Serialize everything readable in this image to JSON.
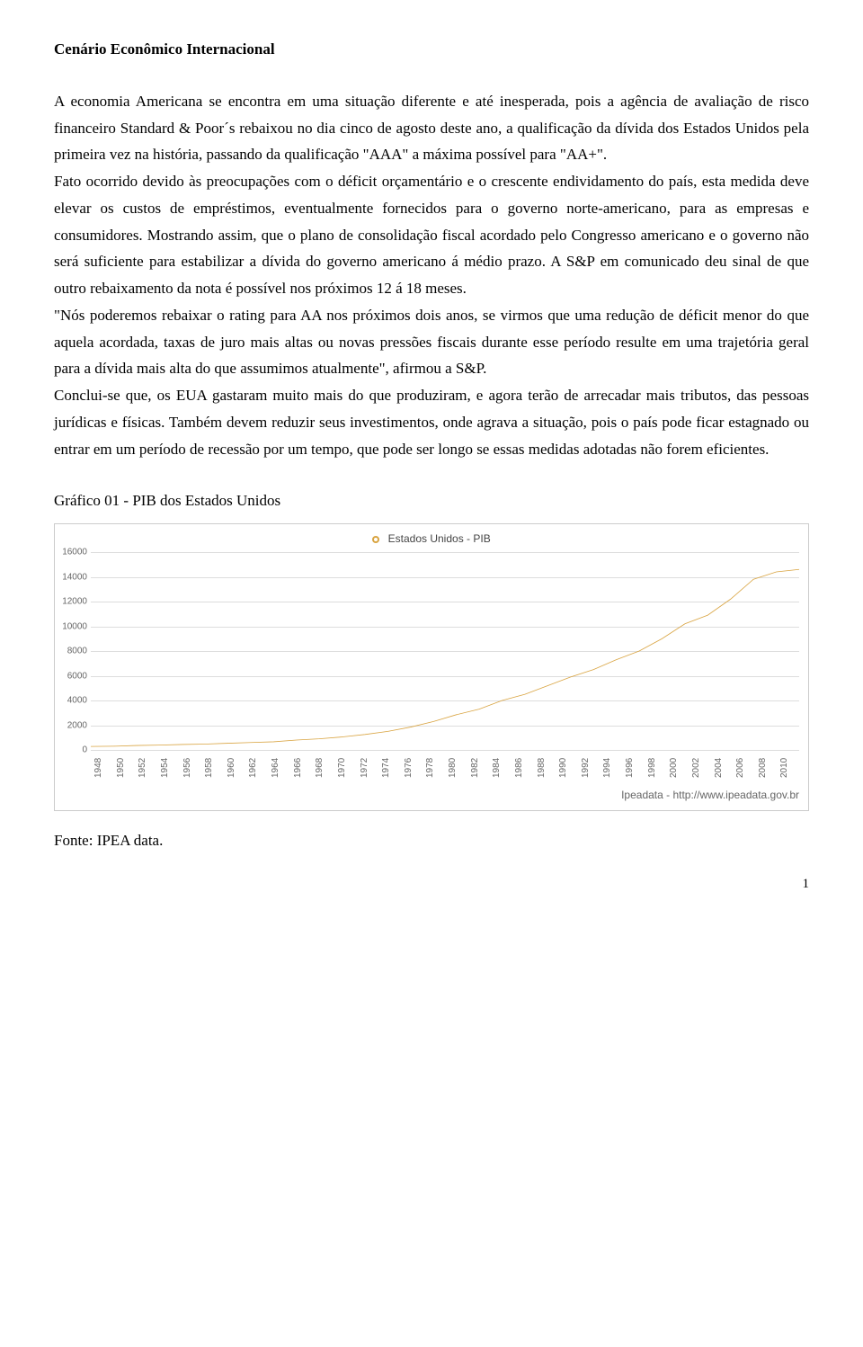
{
  "title": "Cenário Econômico Internacional",
  "paragraphs": {
    "p1": "A economia Americana se encontra em uma situação diferente e até inesperada, pois a agência de avaliação de risco financeiro Standard & Poor´s rebaixou no dia cinco de agosto deste ano, a qualificação da dívida dos Estados Unidos pela primeira vez na história, passando da qualificação \"AAA\" a máxima possível para \"AA+\".",
    "p2": "Fato ocorrido devido às preocupações com o déficit orçamentário e o crescente endividamento do país, esta medida deve elevar os custos de empréstimos, eventualmente fornecidos para o governo norte-americano, para as empresas e consumidores. Mostrando assim, que o plano de consolidação fiscal acordado pelo Congresso americano e o governo não será suficiente para estabilizar a dívida do governo americano á médio prazo. A S&P em comunicado deu sinal de que outro rebaixamento da nota é possível nos próximos 12 á 18 meses.",
    "p3": "\"Nós poderemos rebaixar o rating para AA nos próximos dois anos, se virmos que uma redução de déficit menor do que aquela acordada, taxas de juro mais altas ou novas pressões fiscais durante esse período resulte em uma trajetória geral para a dívida mais alta do que assumimos atualmente\", afirmou a S&P.",
    "p4": "Conclui-se que, os EUA gastaram muito mais do que produziram, e agora terão de arrecadar mais tributos, das pessoas jurídicas e físicas. Também devem reduzir seus investimentos, onde agrava a situação, pois o país pode ficar estagnado ou entrar em um período de recessão por um tempo, que pode ser longo se essas medidas adotadas não forem eficientes."
  },
  "chart_label": "Gráfico 01 - PIB dos Estados Unidos",
  "chart": {
    "type": "line",
    "legend_label": "Estados Unidos - PIB",
    "line_color": "#d9a441",
    "marker_fill": "#ffffff",
    "marker_border": "#d9a441",
    "background_color": "#ffffff",
    "grid_color": "#dddddd",
    "axis_text_color": "#666666",
    "ylim": [
      0,
      16000
    ],
    "ytick_step": 2000,
    "yticks": [
      0,
      2000,
      4000,
      6000,
      8000,
      10000,
      12000,
      14000,
      16000
    ],
    "x_years": [
      1948,
      1950,
      1952,
      1954,
      1956,
      1958,
      1960,
      1962,
      1964,
      1966,
      1968,
      1970,
      1972,
      1974,
      1976,
      1978,
      1980,
      1982,
      1984,
      1986,
      1988,
      1990,
      1992,
      1994,
      1996,
      1998,
      2000,
      2002,
      2004,
      2006,
      2008,
      2010
    ],
    "values": [
      280,
      300,
      360,
      390,
      440,
      470,
      540,
      600,
      660,
      800,
      900,
      1050,
      1250,
      1500,
      1850,
      2300,
      2850,
      3300,
      4000,
      4500,
      5200,
      5900,
      6500,
      7300,
      8000,
      9000,
      10200,
      10900,
      12200,
      13800,
      14400,
      14600
    ],
    "source_label": "Ipeadata - http://www.ipeadata.gov.br"
  },
  "source_line": "Fonte: IPEA data.",
  "page_number": "1"
}
